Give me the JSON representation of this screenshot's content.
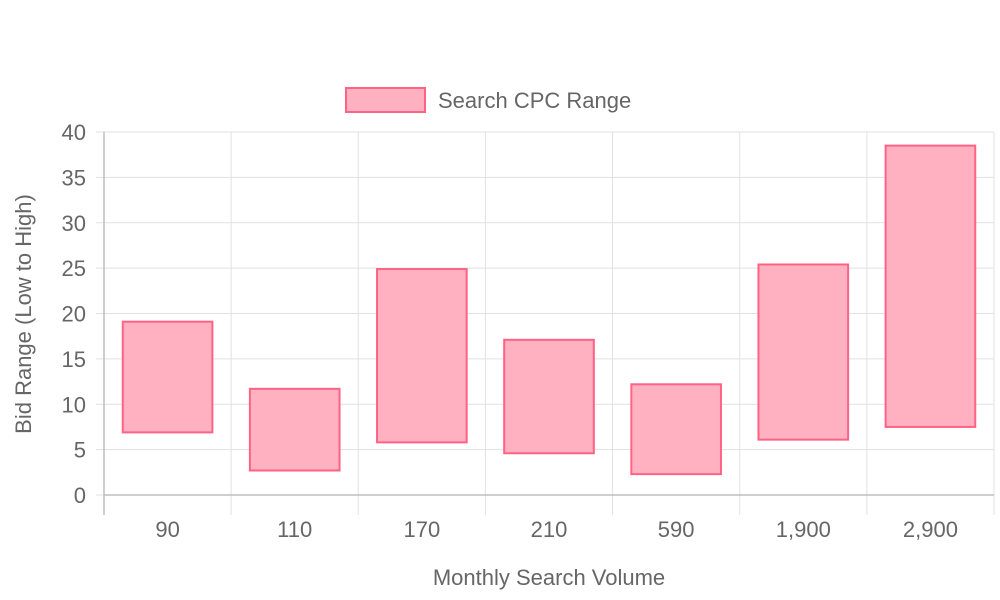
{
  "chart_data": {
    "type": "bar",
    "subtype": "floating",
    "categories": [
      "90",
      "110",
      "170",
      "210",
      "590",
      "1,900",
      "2,900"
    ],
    "series": [
      {
        "name": "Search CPC Range",
        "ranges": [
          [
            6.9,
            19.1
          ],
          [
            2.7,
            11.7
          ],
          [
            5.8,
            24.9
          ],
          [
            4.6,
            17.1
          ],
          [
            2.3,
            12.2
          ],
          [
            6.1,
            25.4
          ],
          [
            7.5,
            38.5
          ]
        ],
        "fill_color": "#FFB1C1",
        "border_color": "#FF6384"
      }
    ],
    "xlabel": "Monthly Search Volume",
    "ylabel": "Bid Range (Low to High)",
    "ylim": [
      0,
      40
    ],
    "yticks": [
      "0",
      "5",
      "10",
      "15",
      "20",
      "25",
      "30",
      "35",
      "40"
    ],
    "grid": true,
    "legend_position": "top"
  }
}
